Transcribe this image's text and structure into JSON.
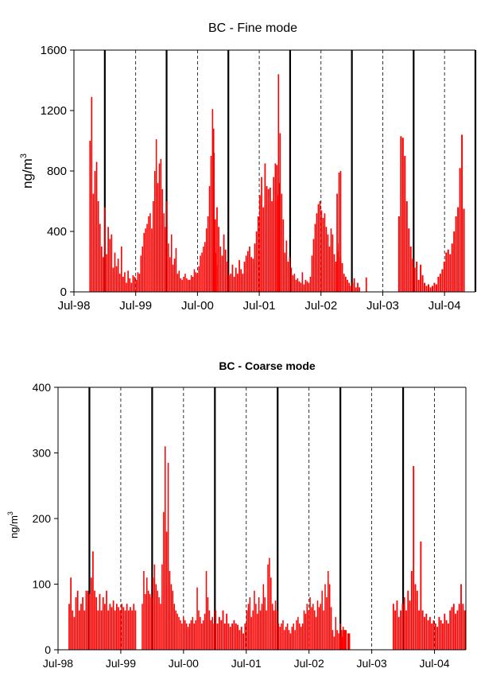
{
  "chart_data": [
    {
      "type": "bar",
      "title": "BC - Fine mode",
      "xlabel": "",
      "ylabel": "ng/m",
      "ylabel_superscript": "3",
      "ylim": [
        0,
        1600
      ],
      "yticks": [
        "0",
        "400",
        "800",
        "1200",
        "1600"
      ],
      "xticks": [
        "Jul-98",
        "Jul-99",
        "Jul-00",
        "Jul-01",
        "Jul-02",
        "Jul-03",
        "Jul-04"
      ],
      "xlim": [
        "1998-07",
        "2004-12"
      ],
      "color": "#ff0000",
      "solid_lines_at": [
        "1999-01",
        "2000-01",
        "2001-01",
        "2002-01",
        "2003-01",
        "2004-01",
        "2005-01"
      ],
      "dashed_lines_at": [
        "1999-07",
        "2000-07",
        "2001-07",
        "2002-07",
        "2003-07",
        "2004-07"
      ],
      "segments": [
        {
          "start": "1998-10",
          "end": "1999-06",
          "profile": [
            1000,
            1290,
            650,
            800,
            860,
            600,
            450,
            300,
            230,
            560,
            250,
            430,
            350,
            380,
            160,
            260,
            170,
            220,
            120,
            300,
            100,
            130,
            60,
            140,
            90,
            60,
            110,
            100
          ]
        },
        {
          "start": "1999-07",
          "end": "1999-09",
          "profile": [
            80,
            130,
            120,
            240,
            300,
            390,
            420,
            450,
            500,
            520
          ]
        },
        {
          "start": "1999-10",
          "end": "2000-10",
          "profile": [
            420,
            600,
            800,
            1010,
            720,
            850,
            880,
            680,
            520,
            430,
            600,
            320,
            230,
            380,
            180,
            220,
            290,
            120,
            140,
            90,
            80,
            100,
            120,
            90,
            80,
            80,
            110,
            100,
            150,
            130,
            120,
            170,
            240,
            260,
            300,
            330,
            420,
            500,
            700,
            900,
            1210,
            920,
            260,
            180
          ]
        },
        {
          "start": "2000-10",
          "end": "2001-10",
          "profile": [
            1080,
            480,
            560,
            430,
            300,
            240,
            380,
            280,
            200,
            110,
            120,
            180,
            100,
            160,
            120,
            210,
            150,
            120,
            200,
            240,
            270,
            300,
            230,
            220,
            320,
            400,
            500,
            640,
            760,
            560,
            850,
            700,
            680,
            690,
            600,
            760,
            850,
            640,
            720
          ]
        },
        {
          "start": "2001-10",
          "end": "2002-10",
          "profile": [
            600,
            840,
            1440,
            1050,
            650,
            480,
            260,
            340,
            200,
            230,
            160,
            110,
            120,
            80,
            90,
            70,
            60,
            130,
            50,
            80,
            70,
            60,
            100,
            240,
            350,
            450,
            520,
            580,
            600,
            540,
            490,
            520,
            430,
            380,
            300,
            420,
            380,
            250,
            200,
            270,
            790,
            800
          ]
        },
        {
          "start": "2002-10",
          "end": "2003-03",
          "profile": [
            650,
            320,
            230,
            190,
            120,
            100,
            80,
            60,
            40,
            60,
            90,
            30,
            60,
            30,
            0,
            0,
            0,
            95
          ]
        },
        {
          "start": "2003-10",
          "end": "2004-10",
          "profile": [
            500,
            1030,
            1020,
            900,
            600,
            420,
            300,
            220,
            160,
            200,
            80,
            180,
            110,
            60,
            40,
            50,
            30,
            40,
            60,
            50,
            100,
            120,
            150,
            200,
            260,
            280,
            250,
            320,
            400,
            500,
            560,
            820,
            1040,
            550
          ]
        }
      ]
    },
    {
      "type": "bar",
      "title": "BC - Coarse mode",
      "xlabel": "",
      "ylabel": "ng/m",
      "ylabel_superscript": "3",
      "ylim": [
        0,
        400
      ],
      "yticks": [
        "0",
        "100",
        "200",
        "300",
        "400"
      ],
      "xticks": [
        "Jul-98",
        "Jul-99",
        "Jul-00",
        "Jul-01",
        "Jul-02",
        "Jul-03",
        "Jul-04"
      ],
      "xlim": [
        "1998-07",
        "2004-12"
      ],
      "color": "#ff0000",
      "solid_lines_at": [
        "1999-01",
        "2000-01",
        "2001-01",
        "2002-01",
        "2003-01",
        "2004-01"
      ],
      "dashed_lines_at": [
        "1999-07",
        "2000-07",
        "2001-07",
        "2002-07",
        "2003-07",
        "2004-07"
      ],
      "segments": [
        {
          "start": "1998-09",
          "end": "1999-09",
          "profile": [
            70,
            110,
            60,
            50,
            80,
            90,
            60,
            70,
            80,
            60,
            90,
            90,
            85,
            110,
            150,
            90,
            80,
            60,
            85,
            60,
            80,
            70,
            90,
            60,
            70,
            65,
            75,
            60,
            70,
            65,
            60,
            70,
            65,
            60,
            70,
            60,
            65,
            60,
            70,
            60
          ]
        },
        {
          "start": "1999-11",
          "end": "2000-12",
          "profile": [
            70,
            120,
            85,
            110,
            90,
            85,
            80,
            110,
            130,
            100,
            90,
            80,
            70,
            130,
            210,
            310,
            180,
            285,
            120,
            100,
            90,
            70,
            60,
            55,
            50,
            45,
            40,
            50,
            45,
            40,
            35,
            40,
            45,
            50,
            40,
            45,
            95,
            60,
            50,
            40,
            45,
            55,
            120,
            80,
            60,
            45,
            50,
            40
          ]
        },
        {
          "start": "2001-01",
          "end": "2001-06",
          "profile": [
            60,
            40,
            50,
            45,
            60,
            40,
            55,
            40,
            35,
            40,
            45,
            40,
            38,
            30,
            35,
            25,
            40
          ]
        },
        {
          "start": "2001-07",
          "end": "2003-01",
          "profile": [
            60,
            70,
            80,
            50,
            60,
            90,
            70,
            55,
            80,
            60,
            70,
            100,
            80,
            60,
            130,
            140,
            110,
            70,
            60,
            75,
            60,
            40,
            35,
            40,
            45,
            30,
            35,
            40,
            30,
            25,
            35,
            40,
            30,
            45,
            50,
            40,
            35,
            40,
            60,
            55,
            70,
            60,
            80,
            65,
            70,
            60,
            50,
            75,
            65,
            70,
            90,
            60,
            100,
            80,
            120,
            100,
            65,
            30,
            20,
            50,
            30,
            25,
            40,
            30,
            35,
            30
          ]
        },
        {
          "start": "2003-01",
          "end": "2003-02",
          "profile": [
            20,
            30,
            25
          ]
        },
        {
          "start": "2003-11",
          "end": "2004-12",
          "profile": [
            70,
            60,
            75,
            50,
            60,
            70,
            80,
            60,
            90,
            75,
            120,
            280,
            100,
            90,
            60,
            165,
            60,
            50,
            55,
            45,
            50,
            40,
            45,
            40,
            35,
            50,
            45,
            40,
            55,
            45,
            40,
            60,
            65,
            70,
            55,
            60,
            70,
            100,
            70,
            60
          ]
        }
      ]
    }
  ]
}
